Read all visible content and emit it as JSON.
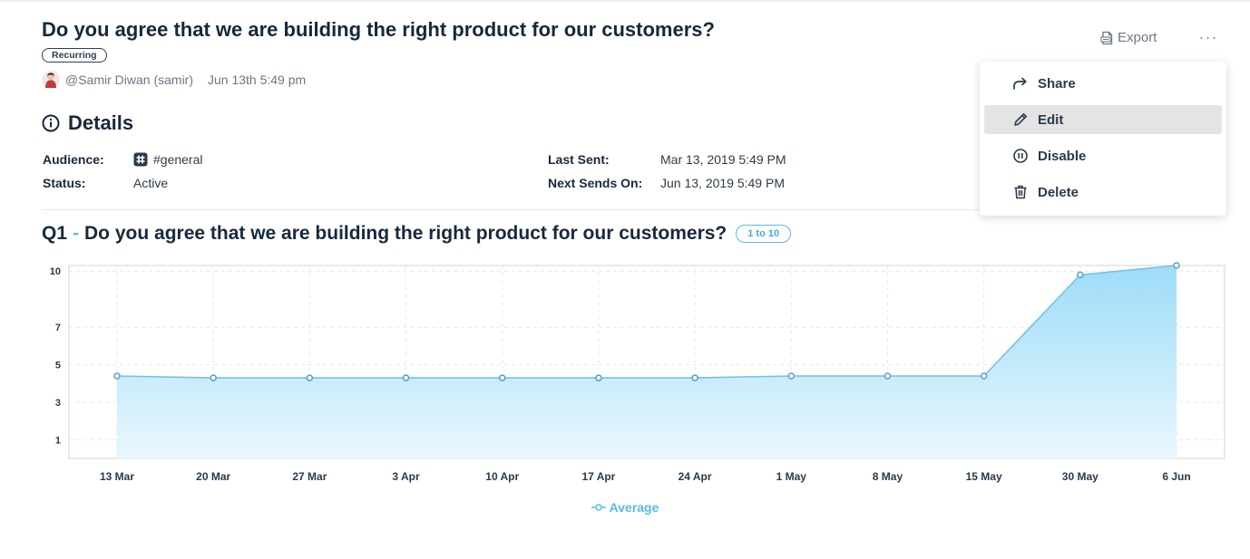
{
  "survey": {
    "title": "Do you agree that we are building the right product for our customers?",
    "badge": "Recurring",
    "author": "@Samir Diwan (samir)",
    "date": "Jun 13th 5:49 pm"
  },
  "header_actions": {
    "export_label": "Export",
    "more_label": "···"
  },
  "details": {
    "heading": "Details",
    "audience_label": "Audience:",
    "audience_value": "#general",
    "status_label": "Status:",
    "status_value": "Active",
    "last_sent_label": "Last Sent:",
    "last_sent_value": "Mar 13, 2019 5:49 PM",
    "next_sends_label": "Next Sends On:",
    "next_sends_value": "Jun 13, 2019 5:49 PM"
  },
  "question": {
    "number": "Q1",
    "separator": "-",
    "text": "Do you agree that we are building the right product for our customers?",
    "range_badge": "1 to 10"
  },
  "menu": {
    "items": [
      {
        "label": "Share",
        "icon": "share-icon"
      },
      {
        "label": "Edit",
        "icon": "pencil-icon",
        "active": true
      },
      {
        "label": "Disable",
        "icon": "pause-icon"
      },
      {
        "label": "Delete",
        "icon": "trash-icon"
      }
    ]
  },
  "chart_data": {
    "type": "area",
    "categories": [
      "13 Mar",
      "20 Mar",
      "27 Mar",
      "3 Apr",
      "10 Apr",
      "17 Apr",
      "24 Apr",
      "1 May",
      "8 May",
      "15 May",
      "30 May",
      "6 Jun"
    ],
    "series": [
      {
        "name": "Average",
        "values": [
          4.4,
          4.3,
          4.3,
          4.3,
          4.3,
          4.3,
          4.3,
          4.4,
          4.4,
          4.4,
          9.8,
          10.3
        ]
      }
    ],
    "y_ticks": [
      1,
      3,
      5,
      7,
      10
    ],
    "ylim": [
      0,
      10.3
    ],
    "grid": true,
    "legend": "bottom-center",
    "colors": {
      "line": "#74c0ee",
      "fill_top": "#9ddcf8",
      "fill_bottom": "#eaf7fd"
    }
  }
}
